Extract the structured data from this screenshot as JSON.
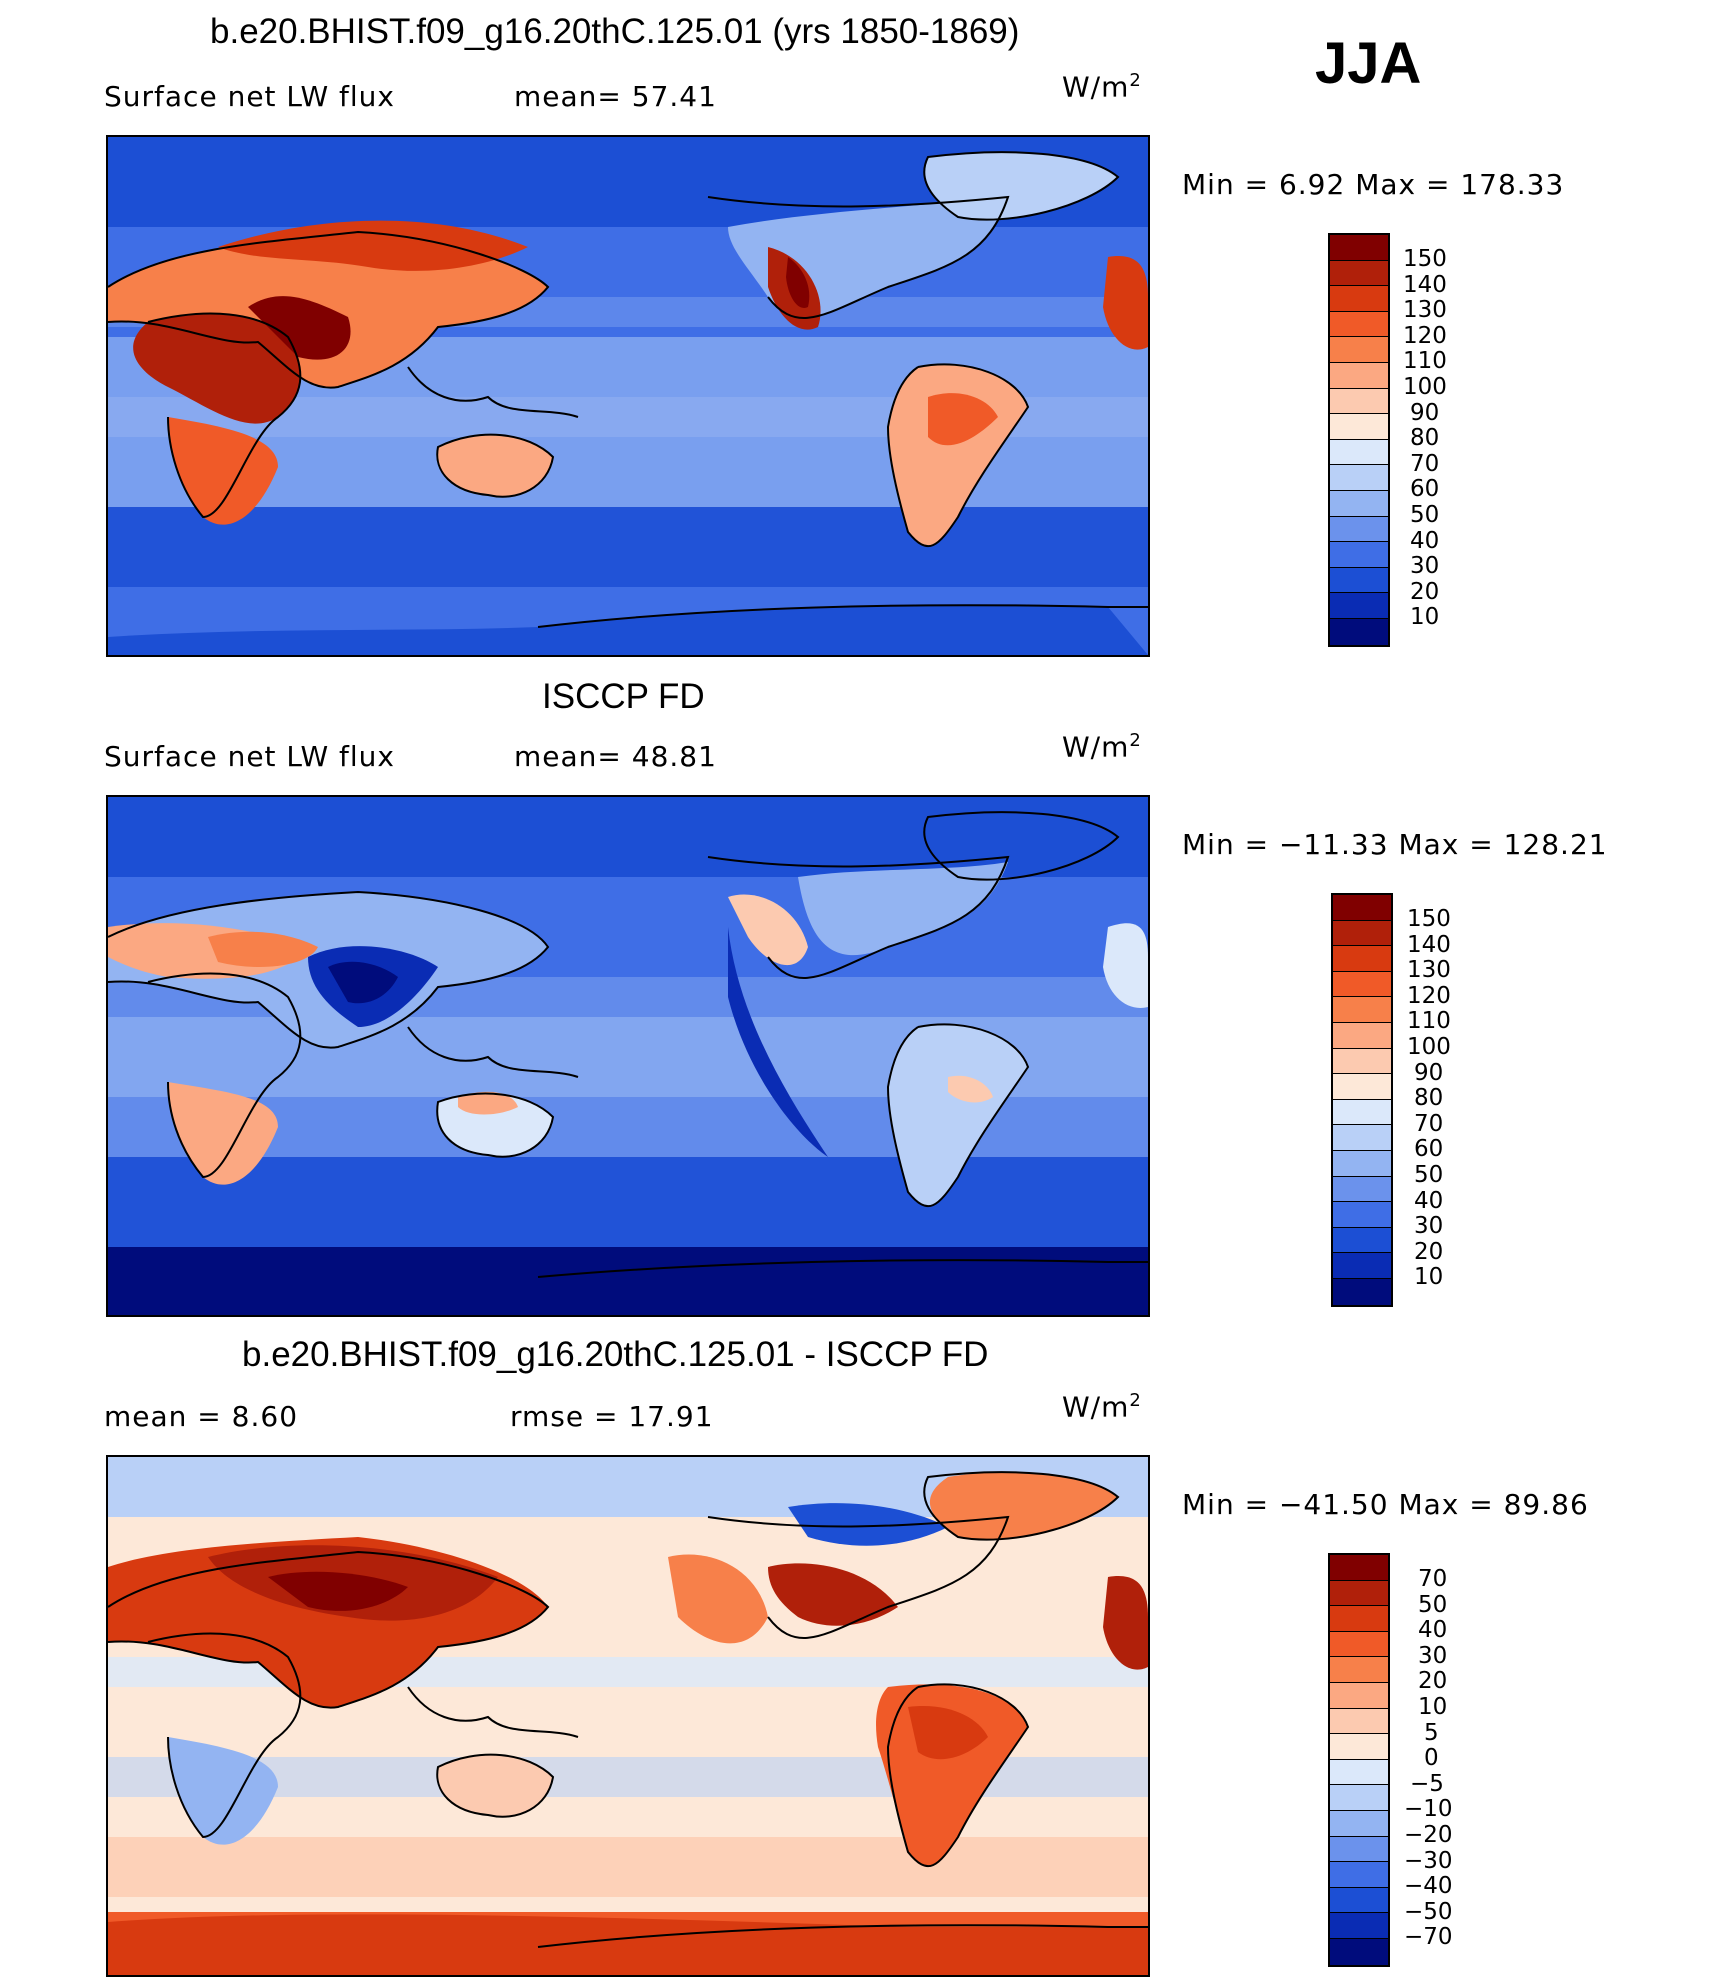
{
  "season": "JJA",
  "unit_base": "W/m",
  "unit_exp": "2",
  "panels": [
    {
      "title": "b.e20.BHIST.f09_g16.20thC.125.01 (yrs 1850-1869)",
      "left_label": "Surface net LW flux",
      "right_label": "mean=  57.41",
      "minmax": "Min =   6.92 Max = 178.33",
      "legend": [
        "150",
        "140",
        "130",
        "120",
        "110",
        "100",
        "90",
        "80",
        "70",
        "60",
        "50",
        "40",
        "30",
        "20",
        "10"
      ]
    },
    {
      "title": "ISCCP FD",
      "left_label": "Surface net LW flux",
      "right_label": "mean=  48.81",
      "minmax": "Min = −11.33 Max = 128.21",
      "legend": [
        "150",
        "140",
        "130",
        "120",
        "110",
        "100",
        "90",
        "80",
        "70",
        "60",
        "50",
        "40",
        "30",
        "20",
        "10"
      ]
    },
    {
      "title": "b.e20.BHIST.f09_g16.20thC.125.01 - ISCCP FD",
      "left_label": "mean =    8.60",
      "right_label": "rmse =   17.91",
      "minmax": "Min = −41.50 Max =  89.86",
      "legend": [
        "70",
        "50",
        "40",
        "30",
        "20",
        "10",
        "5",
        "0",
        "−5",
        "−10",
        "−20",
        "−30",
        "−40",
        "−50",
        "−70"
      ]
    }
  ],
  "colors": {
    "abs_scale": [
      "#800000",
      "#b0200a",
      "#d83a10",
      "#f05a28",
      "#f7804a",
      "#fba882",
      "#fccab0",
      "#fde8d8",
      "#dbe8fa",
      "#b9d0f7",
      "#93b4f2",
      "#6b92ec",
      "#3f6ee6",
      "#1c4fd4",
      "#0a2cb4",
      "#000c7c"
    ],
    "diff_scale": [
      "#800000",
      "#b0200a",
      "#d83a10",
      "#f05a28",
      "#f7804a",
      "#fba882",
      "#fccab0",
      "#fde8d8",
      "#dbe8fa",
      "#b9d0f7",
      "#93b4f2",
      "#6b92ec",
      "#3f6ee6",
      "#1c4fd4",
      "#0a2cb4",
      "#000c7c"
    ]
  }
}
